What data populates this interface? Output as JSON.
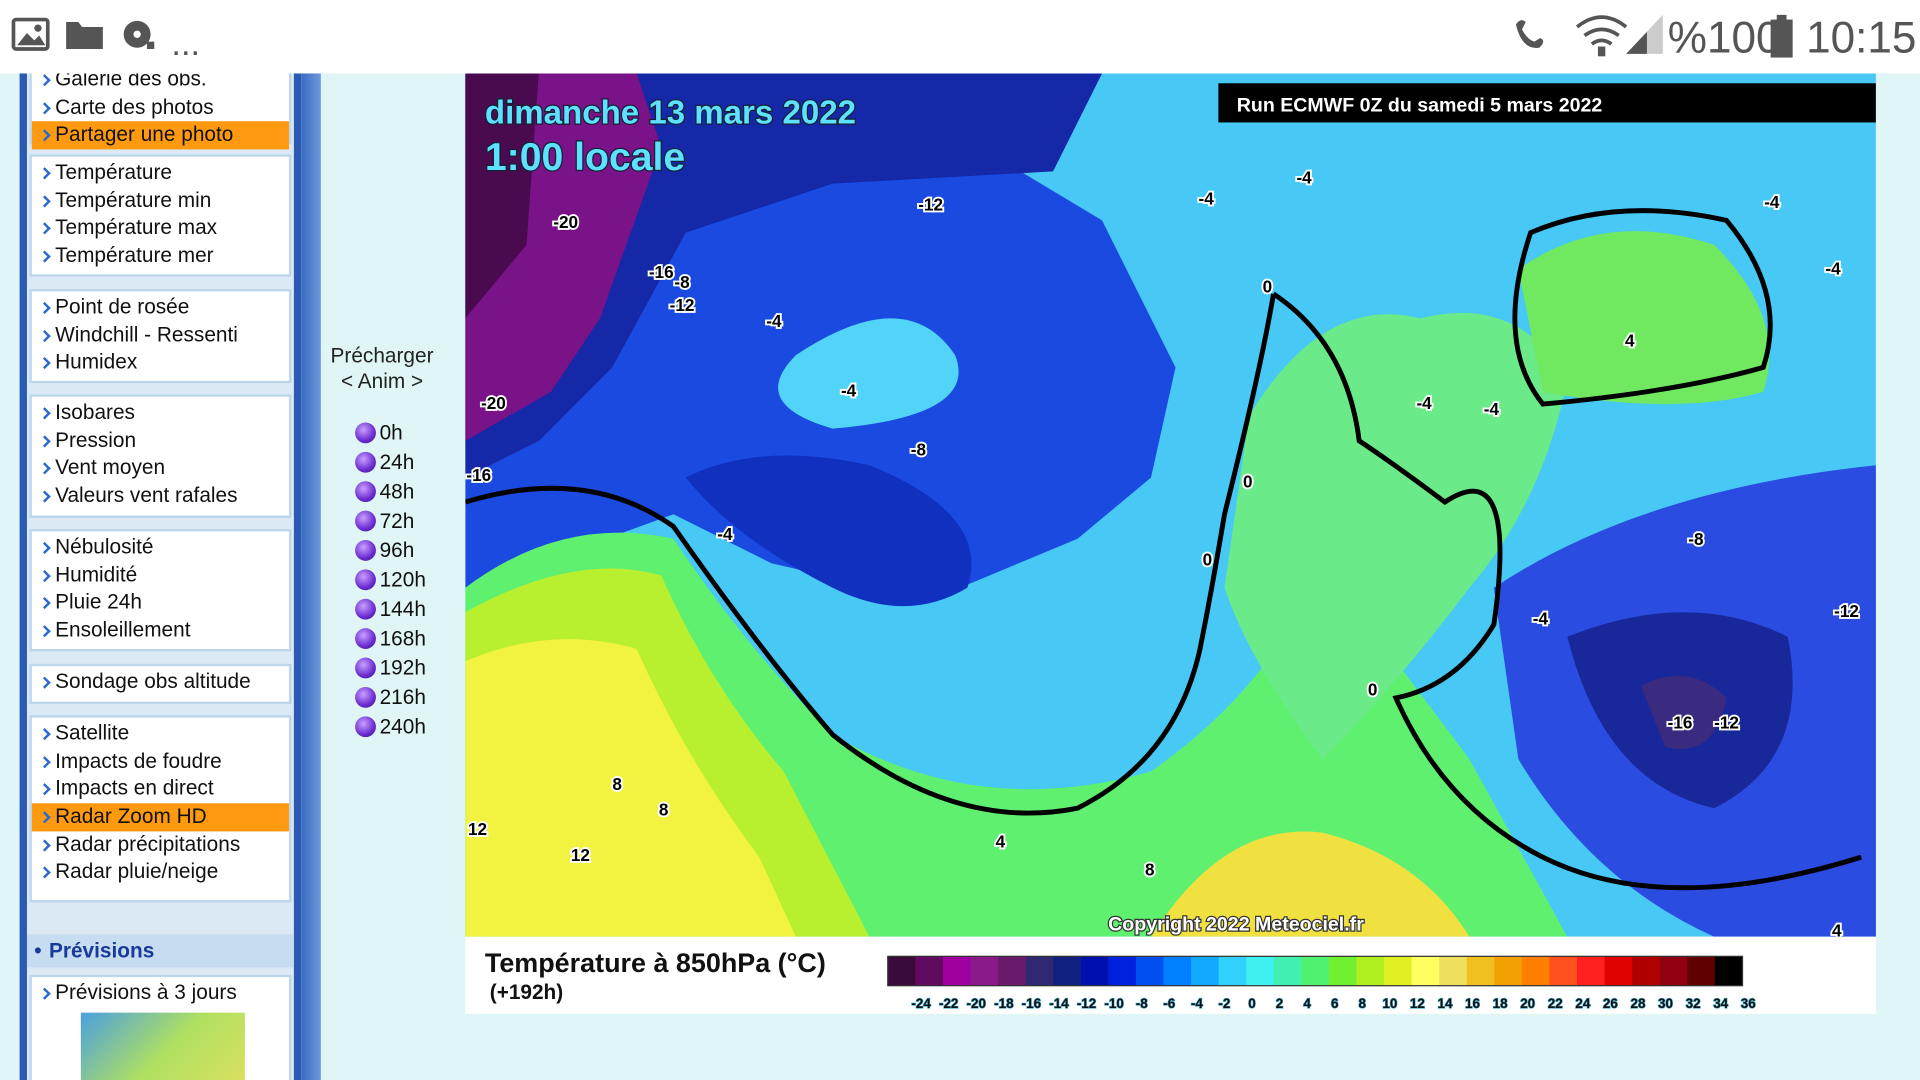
{
  "status_bar": {
    "more": "...",
    "battery": "%100",
    "time": "10:15"
  },
  "sidebar": {
    "groups": [
      [
        {
          "label": "Galerie des obs."
        },
        {
          "label": "Carte des photos"
        },
        {
          "label": "Partager une photo",
          "active": true
        }
      ],
      [
        {
          "label": "Température"
        },
        {
          "label": "Température min"
        },
        {
          "label": "Température max"
        },
        {
          "label": "Température mer"
        }
      ],
      [
        {
          "label": "Point de rosée"
        },
        {
          "label": "Windchill - Ressenti"
        },
        {
          "label": "Humidex"
        }
      ],
      [
        {
          "label": "Isobares"
        },
        {
          "label": "Pression"
        },
        {
          "label": "Vent moyen"
        },
        {
          "label": "Valeurs vent rafales"
        }
      ],
      [
        {
          "label": "Nébulosité"
        },
        {
          "label": "Humidité"
        },
        {
          "label": "Pluie 24h"
        },
        {
          "label": "Ensoleillement"
        }
      ],
      [
        {
          "label": "Sondage obs altitude"
        }
      ],
      [
        {
          "label": "Satellite"
        },
        {
          "label": "Impacts de foudre"
        },
        {
          "label": "Impacts en direct"
        },
        {
          "label": "Radar Zoom HD",
          "active": true
        },
        {
          "label": "Radar précipitations"
        },
        {
          "label": "Radar pluie/neige"
        }
      ]
    ],
    "section_title": "Prévisions",
    "section_items": [
      "Prévisions à 3 jours"
    ]
  },
  "anim": {
    "title": "Précharger",
    "control": "< Anim >",
    "hours": [
      "0h",
      "24h",
      "48h",
      "72h",
      "96h",
      "120h",
      "144h",
      "168h",
      "192h",
      "216h",
      "240h"
    ]
  },
  "map": {
    "date": "dimanche 13 mars 2022",
    "time": "1:00 locale",
    "run": "Run ECMWF 0Z du samedi 5 mars 2022",
    "copyright": "Copyright 2022 Meteociel.fr",
    "contour_labels": [
      "-20",
      "-12",
      "-16",
      "-8",
      "-12",
      "-4",
      "-4",
      "-8",
      "-20",
      "-16",
      "-4",
      "-4",
      "-4",
      "-4",
      "-4",
      "0",
      "4",
      "-4",
      "-4",
      "0",
      "0",
      "-8",
      "-12",
      "-4",
      "0",
      "-16",
      "-12",
      "8",
      "8",
      "12",
      "12",
      "4",
      "8",
      "4"
    ]
  },
  "caption": {
    "title": "Température à 850hPa (°C)",
    "subtitle": "(+192h)",
    "colorbar": {
      "labels": [
        "-24",
        "-22",
        "-20",
        "-18",
        "-16",
        "-14",
        "-12",
        "-10",
        "-8",
        "-6",
        "-4",
        "-2",
        "0",
        "2",
        "4",
        "6",
        "8",
        "10",
        "12",
        "14",
        "16",
        "18",
        "20",
        "22",
        "24",
        "26",
        "28",
        "30",
        "32",
        "34",
        "36"
      ],
      "colors": [
        "#3a0a3a",
        "#600a60",
        "#a000a0",
        "#8a1a8a",
        "#6a1a6a",
        "#302870",
        "#102080",
        "#0010b0",
        "#0020e0",
        "#0050f0",
        "#0080ff",
        "#10a8ff",
        "#30d0ff",
        "#40f0f0",
        "#40f0b0",
        "#50f070",
        "#70f030",
        "#b0f020",
        "#e0f020",
        "#ffff60",
        "#f0e060",
        "#f0c020",
        "#f0a000",
        "#ff8000",
        "#ff5020",
        "#ff2020",
        "#e00000",
        "#b00000",
        "#900010",
        "#600000",
        "#000000"
      ]
    }
  }
}
